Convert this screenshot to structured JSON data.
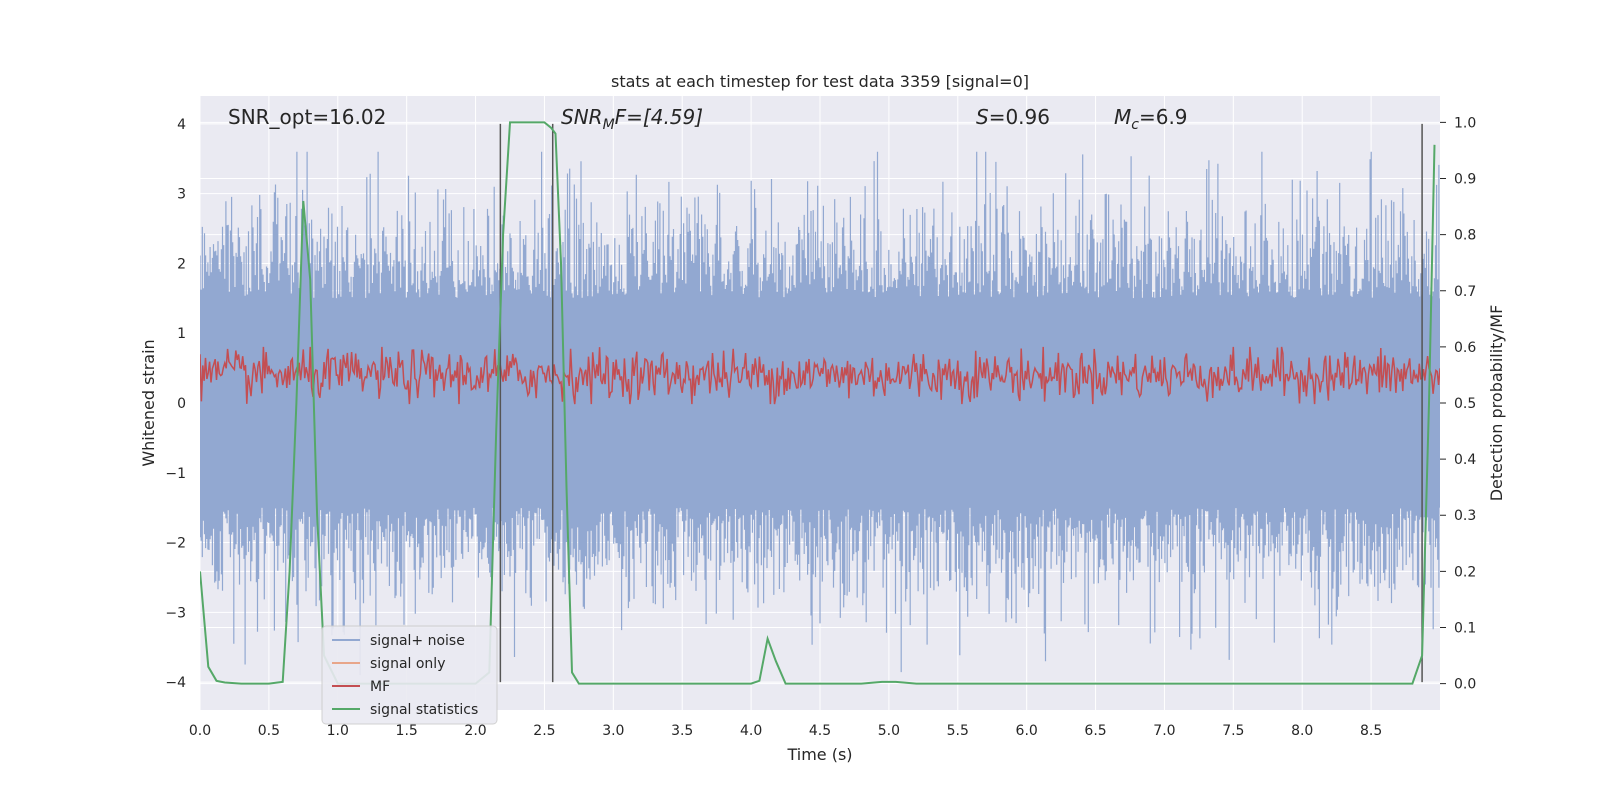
{
  "chart_data": {
    "type": "line",
    "title": "stats at each timestep for test data 3359 [signal=0]",
    "xlabel": "Time (s)",
    "ylabel_left": "Whitened strain",
    "ylabel_right": "Detection probability/MF",
    "xlim": [
      0.0,
      9.0
    ],
    "ylim_left": [
      -4.4,
      4.4
    ],
    "ylim_right": [
      -0.047,
      1.047
    ],
    "x_ticks": [
      "0.0",
      "0.5",
      "1.0",
      "1.5",
      "2.0",
      "2.5",
      "3.0",
      "3.5",
      "4.0",
      "4.5",
      "5.0",
      "5.5",
      "6.0",
      "6.5",
      "7.0",
      "7.5",
      "8.0",
      "8.5"
    ],
    "y_ticks_left": [
      "4",
      "3",
      "2",
      "1",
      "0",
      "−1",
      "−2",
      "−3",
      "−4"
    ],
    "y_ticks_right": [
      "1.0",
      "0.9",
      "0.8",
      "0.7",
      "0.6",
      "0.5",
      "0.4",
      "0.3",
      "0.2",
      "0.1",
      "0.0"
    ],
    "grid": true,
    "legend_position": "lower-left",
    "annotations": {
      "snr_opt": "SNR_opt=16.02",
      "snr_mf_main": "SNR",
      "snr_mf_sub": "M",
      "snr_mf_rest": "F=[4.59]",
      "s_var": "S",
      "s_rest": "=0.96",
      "mc_var": "M",
      "mc_sub": "c",
      "mc_rest": "=6.9"
    },
    "vertical_lines_x": [
      2.18,
      2.56,
      8.87
    ],
    "series": [
      {
        "name": "signal+ noise",
        "color": "#92a8d1",
        "axis": "left",
        "description_values": {
          "t_start": 0.0,
          "t_end": 9.0,
          "amplitude_peak": 3.6,
          "amplitude_trough": -3.9
        }
      },
      {
        "name": "signal only",
        "color": "#e8a68a",
        "axis": "left",
        "values": []
      },
      {
        "name": "MF",
        "color": "#c44e52",
        "axis": "right",
        "level_min": 0.5,
        "level_max": 0.6
      },
      {
        "name": "signal statistics",
        "color": "#55a868",
        "axis": "right",
        "x": [
          0.0,
          0.06,
          0.12,
          0.18,
          0.3,
          0.5,
          0.6,
          0.65,
          0.7,
          0.75,
          0.8,
          0.85,
          0.9,
          1.0,
          1.5,
          2.0,
          2.1,
          2.15,
          2.2,
          2.25,
          2.3,
          2.5,
          2.55,
          2.58,
          2.62,
          2.66,
          2.7,
          2.75,
          3.0,
          3.5,
          4.0,
          4.06,
          4.12,
          4.18,
          4.25,
          4.3,
          4.5,
          4.8,
          4.95,
          5.05,
          5.2,
          6.0,
          7.0,
          8.0,
          8.8,
          8.87,
          8.92,
          8.96
        ],
        "y": [
          0.2,
          0.03,
          0.005,
          0.002,
          0.0,
          0.0,
          0.003,
          0.2,
          0.5,
          0.86,
          0.72,
          0.3,
          0.05,
          0.0,
          0.0,
          0.0,
          0.02,
          0.45,
          0.8,
          1.0,
          1.0,
          1.0,
          0.99,
          0.98,
          0.75,
          0.35,
          0.02,
          0.0,
          0.0,
          0.0,
          0.0,
          0.005,
          0.08,
          0.04,
          0.0,
          0.0,
          0.0,
          0.0,
          0.003,
          0.003,
          0.0,
          0.0,
          0.0,
          0.0,
          0.0,
          0.05,
          0.5,
          0.96
        ]
      }
    ]
  }
}
